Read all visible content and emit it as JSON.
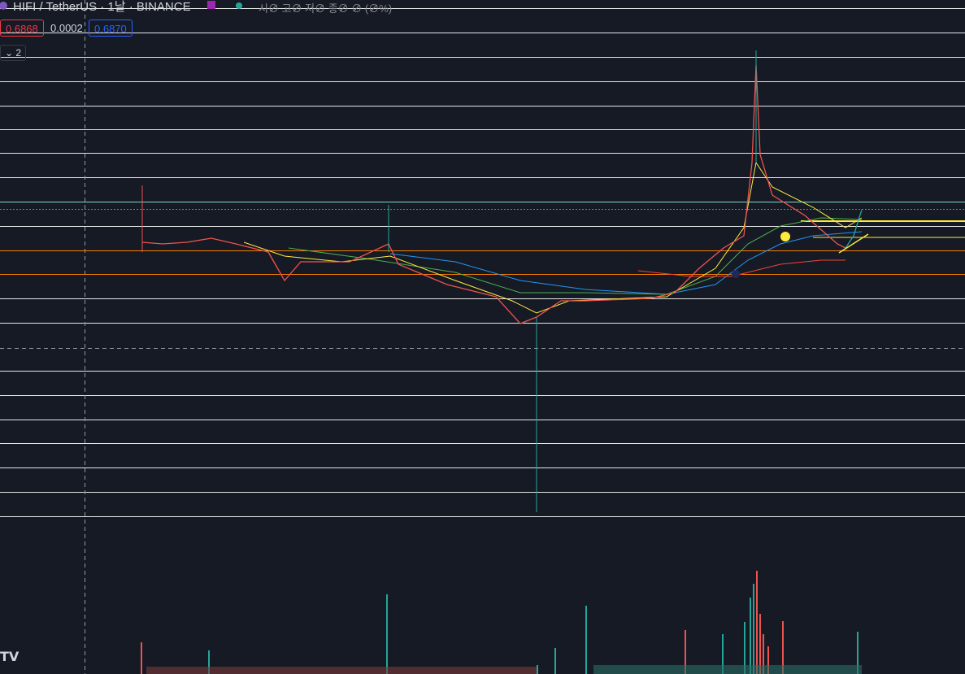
{
  "header": {
    "symbol": "HIFI / TetherUS · 1날 · BINANCE",
    "ohlc": "시∅ 고∅ 저∅ 종∅ ∅ (∅%)"
  },
  "quote": {
    "bid": "0.6868",
    "spread": "0.0002",
    "ask": "0.6870"
  },
  "indicators": {
    "count": "2"
  }
}
